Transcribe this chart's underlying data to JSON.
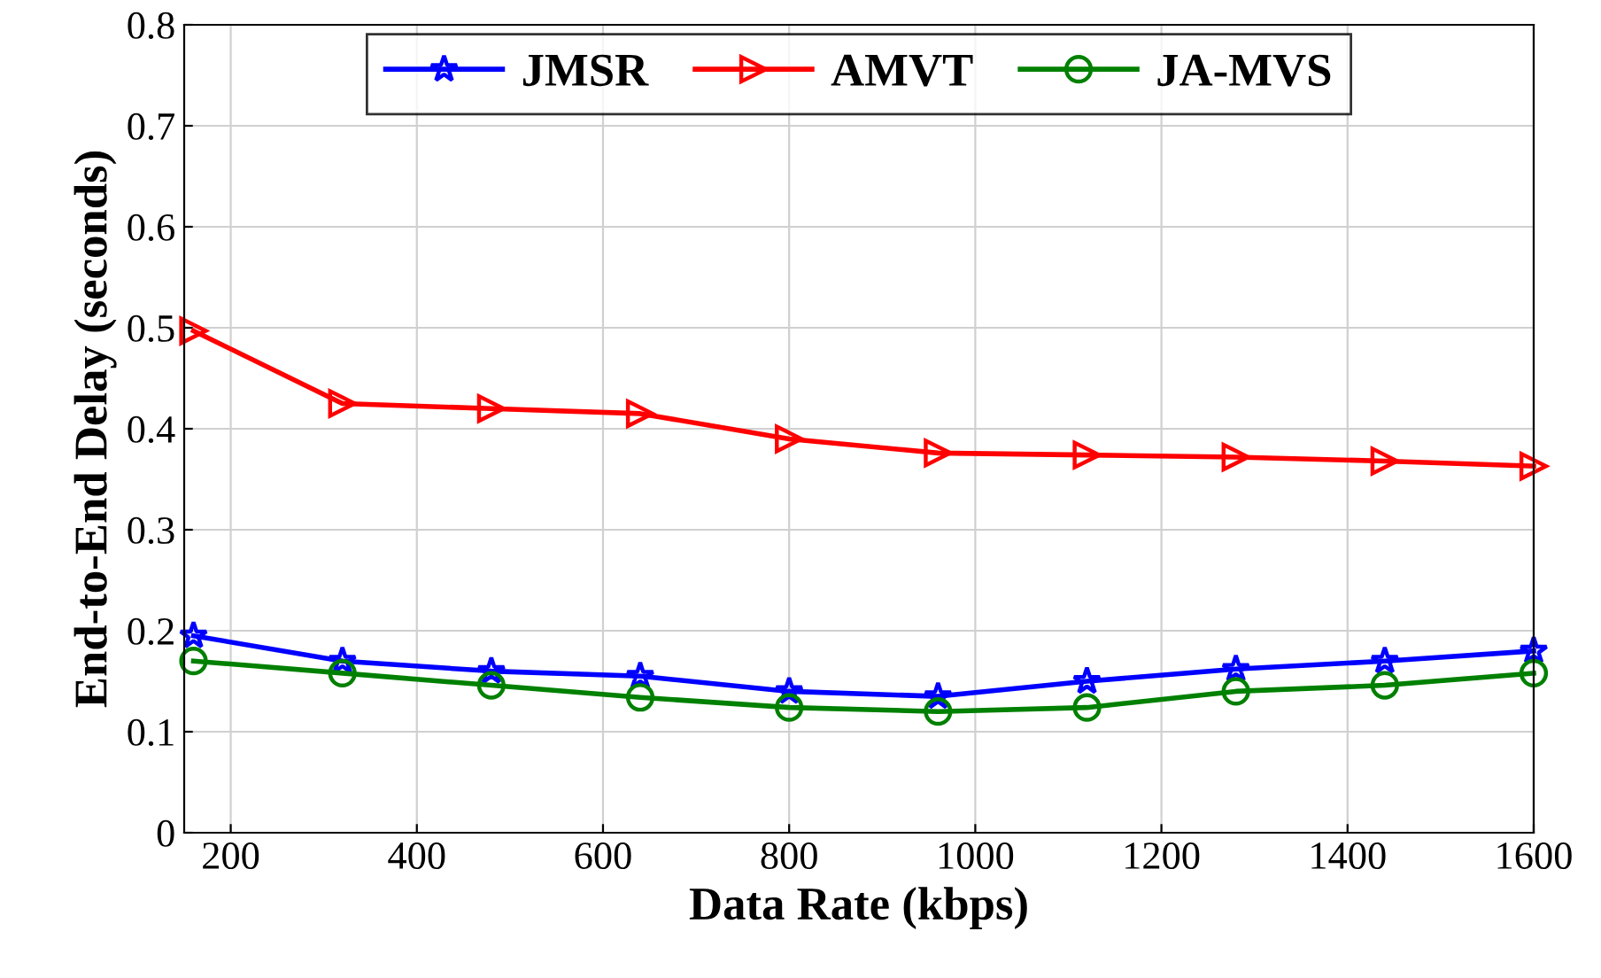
{
  "chart_data": {
    "type": "line",
    "xlabel": "Data Rate (kbps)",
    "ylabel": "End-to-End Delay (seconds)",
    "x": [
      160,
      320,
      480,
      640,
      800,
      960,
      1120,
      1280,
      1440,
      1600
    ],
    "series": [
      {
        "name": "JMSR",
        "color": "#0000ff",
        "marker": "star",
        "values": [
          0.195,
          0.17,
          0.16,
          0.155,
          0.14,
          0.135,
          0.15,
          0.162,
          0.17,
          0.18
        ]
      },
      {
        "name": "AMVT",
        "color": "#ff0000",
        "marker": "triangle",
        "values": [
          0.497,
          0.425,
          0.42,
          0.415,
          0.39,
          0.376,
          0.374,
          0.372,
          0.368,
          0.363
        ]
      },
      {
        "name": "JA-MVS",
        "color": "#008000",
        "marker": "circle",
        "values": [
          0.17,
          0.158,
          0.146,
          0.134,
          0.124,
          0.12,
          0.124,
          0.14,
          0.146,
          0.158
        ]
      }
    ],
    "xlim": [
      150,
      1600
    ],
    "xticks": [
      200,
      400,
      600,
      800,
      1000,
      1200,
      1400,
      1600
    ],
    "ylim": [
      0,
      0.8
    ],
    "yticks": [
      0,
      0.1,
      0.2,
      0.3,
      0.4,
      0.5,
      0.6,
      0.7,
      0.8
    ],
    "grid": true,
    "legend": "top",
    "line_style": "solid"
  }
}
